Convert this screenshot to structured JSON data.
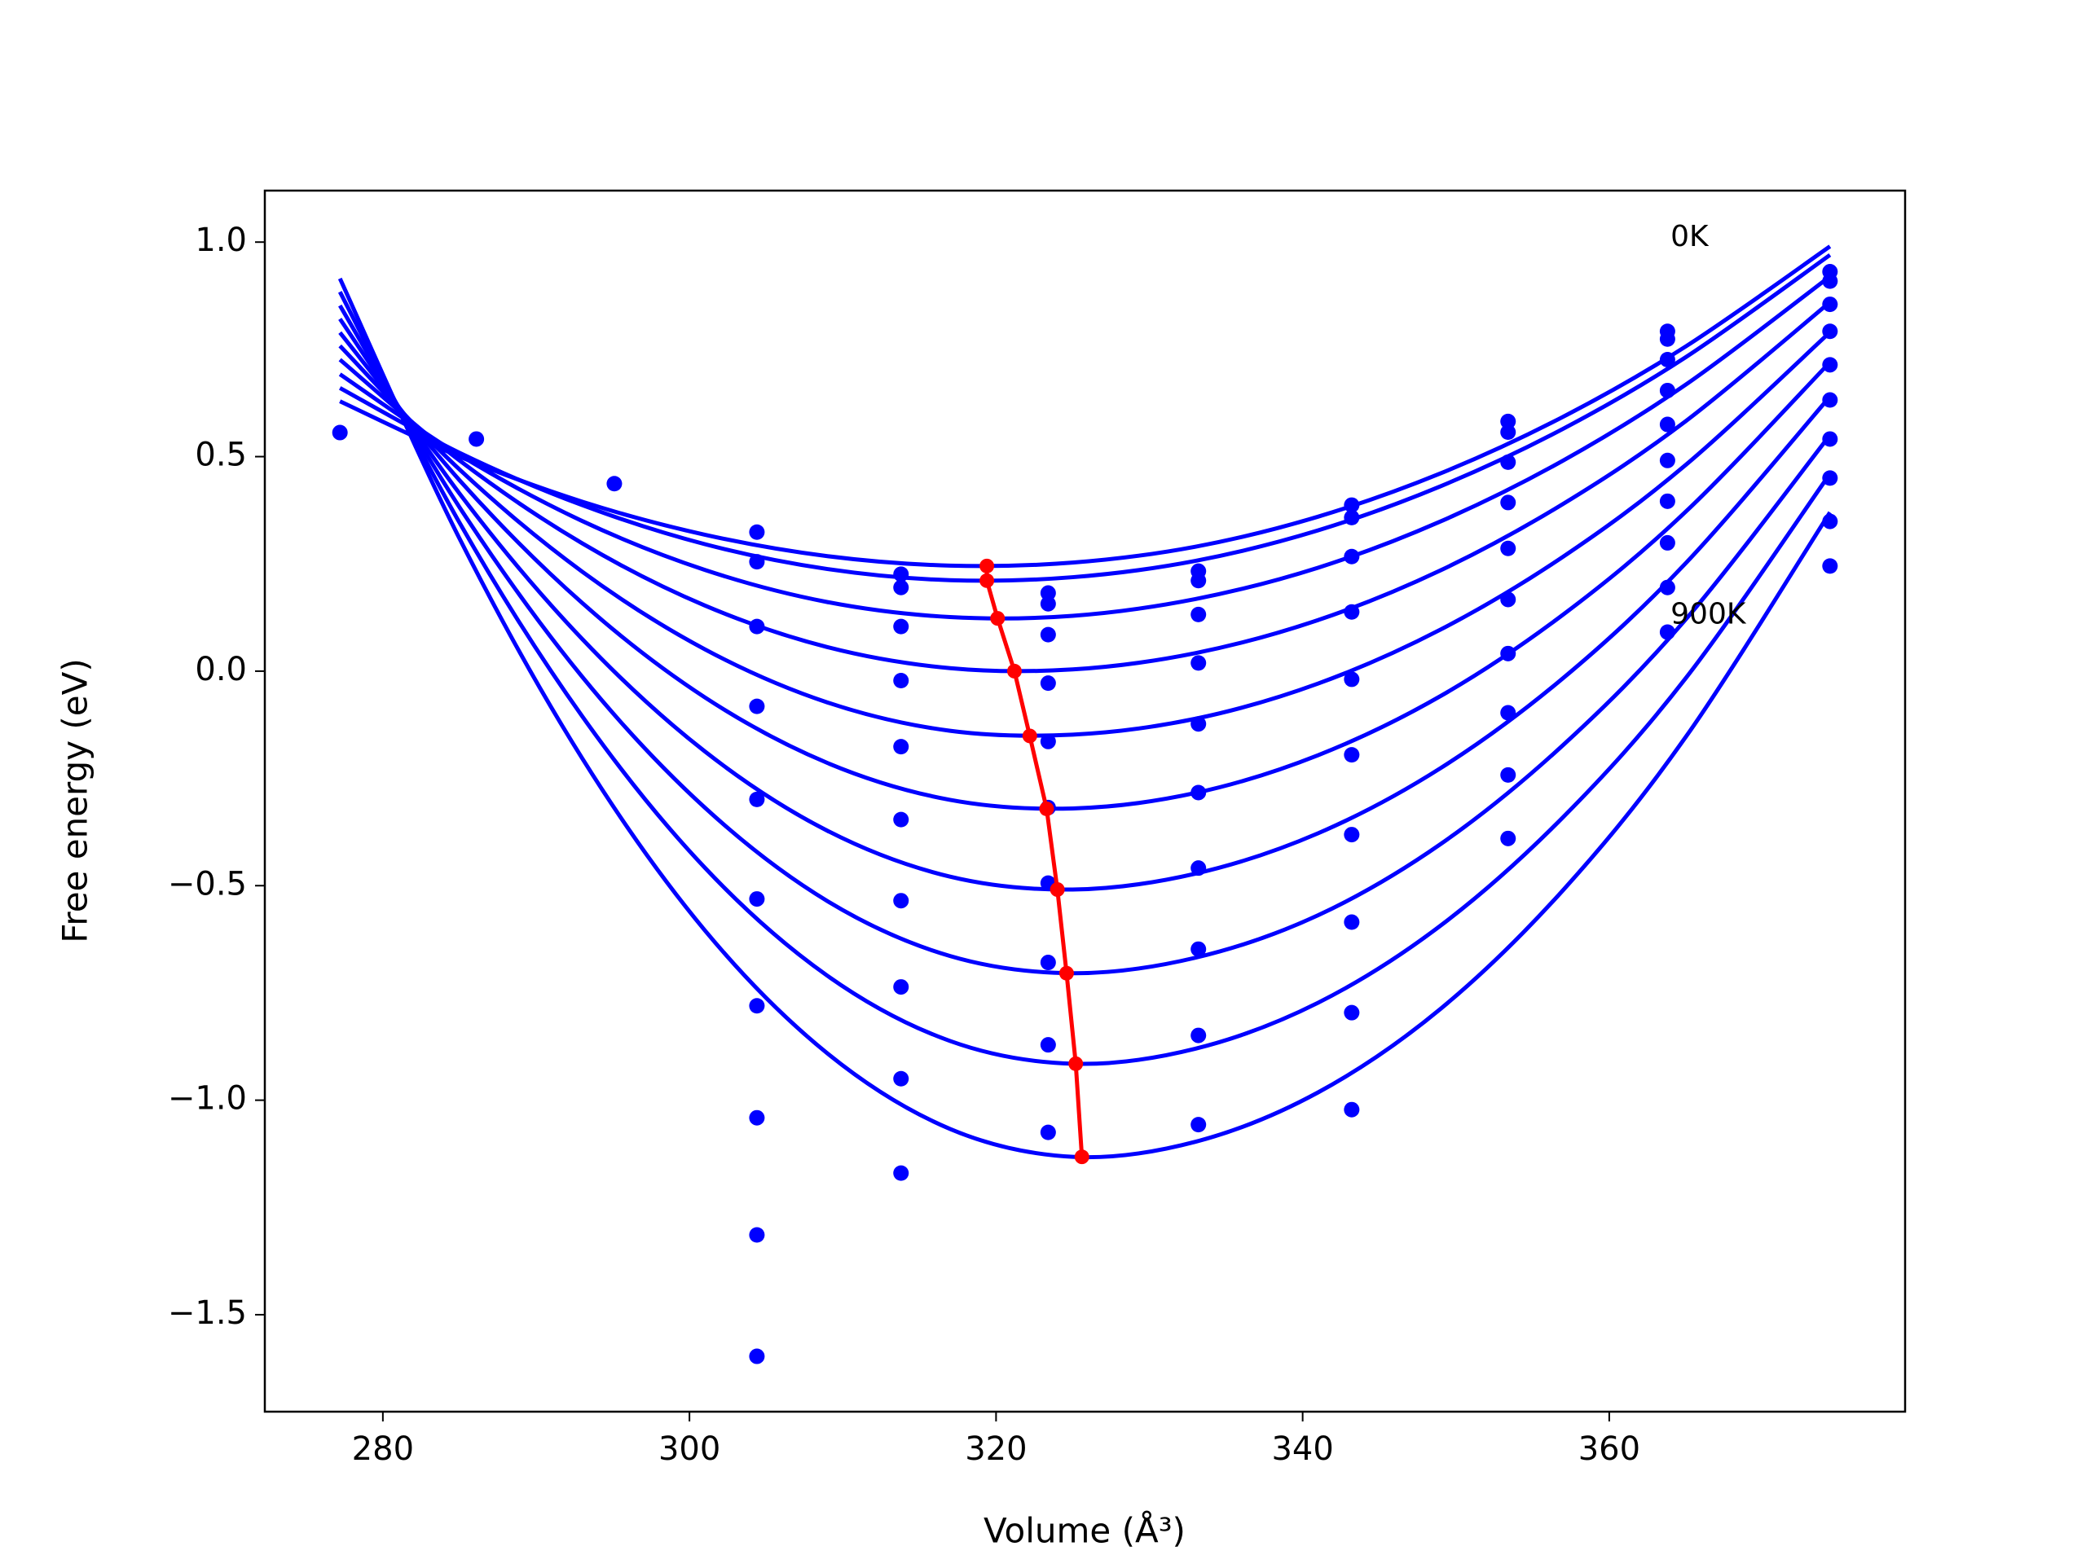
{
  "chart_data": {
    "type": "line",
    "xlabel": "Volume (Å³)",
    "ylabel": "Free energy (eV)",
    "xlim": [
      272.3,
      379.3
    ],
    "ylim": [
      -1.726,
      1.12
    ],
    "xticks": [
      280,
      300,
      320,
      340,
      360
    ],
    "yticks": [
      {
        "value": -1.5,
        "label": "−1.5"
      },
      {
        "value": -1.0,
        "label": "−1.0"
      },
      {
        "value": -0.5,
        "label": "−0.5"
      },
      {
        "value": 0.0,
        "label": "0.0"
      },
      0.5,
      {
        "value": 1.0,
        "label": "1.0"
      }
    ],
    "x": [
      277.2,
      285,
      293,
      301,
      309,
      317,
      325,
      333,
      341,
      349,
      357,
      365,
      374.4
    ],
    "series": [
      {
        "type": "line",
        "color": "#0000ff",
        "values": [
          0.629,
          0.5,
          0.395,
          0.318,
          0.268,
          0.246,
          0.253,
          0.29,
          0.36,
          0.461,
          0.593,
          0.757,
          0.99
        ]
      },
      {
        "type": "line",
        "color": "#0000ff",
        "values": [
          0.66,
          0.509,
          0.387,
          0.296,
          0.238,
          0.212,
          0.219,
          0.257,
          0.328,
          0.431,
          0.565,
          0.732,
          0.97
        ]
      },
      {
        "type": "line",
        "color": "#0000ff",
        "values": [
          0.692,
          0.504,
          0.35,
          0.236,
          0.161,
          0.126,
          0.129,
          0.168,
          0.241,
          0.349,
          0.491,
          0.668,
          0.92
        ]
      },
      {
        "type": "line",
        "color": "#0000ff",
        "values": [
          0.726,
          0.491,
          0.298,
          0.153,
          0.056,
          0.007,
          0.004,
          0.042,
          0.119,
          0.235,
          0.39,
          0.583,
          0.86
        ]
      },
      {
        "type": "line",
        "color": "#0000ff",
        "values": [
          0.758,
          0.47,
          0.232,
          0.051,
          -0.073,
          -0.139,
          -0.148,
          -0.111,
          -0.029,
          0.097,
          0.267,
          0.481,
          0.79
        ]
      },
      {
        "type": "line",
        "color": "#0000ff",
        "values": [
          0.789,
          0.445,
          0.159,
          -0.061,
          -0.214,
          -0.3,
          -0.32,
          -0.284,
          -0.196,
          -0.058,
          0.132,
          0.372,
          0.72
        ]
      },
      {
        "type": "line",
        "color": "#0000ff",
        "values": [
          0.821,
          0.414,
          0.075,
          -0.187,
          -0.372,
          -0.479,
          -0.509,
          -0.472,
          -0.378,
          -0.226,
          -0.016,
          0.252,
          0.64
        ]
      },
      {
        "type": "line",
        "color": "#0000ff",
        "values": [
          0.852,
          0.382,
          -0.013,
          -0.318,
          -0.536,
          -0.664,
          -0.704,
          -0.668,
          -0.569,
          -0.403,
          -0.172,
          0.121,
          0.55
        ]
      },
      {
        "type": "line",
        "color": "#0000ff",
        "values": [
          0.884,
          0.346,
          -0.105,
          -0.458,
          -0.71,
          -0.862,
          -0.915,
          -0.88,
          -0.773,
          -0.593,
          -0.34,
          -0.016,
          0.46
        ]
      },
      {
        "type": "line",
        "color": "#0000ff",
        "values": [
          0.915,
          0.309,
          -0.203,
          -0.604,
          -0.891,
          -1.067,
          -1.132,
          -1.097,
          -0.982,
          -0.787,
          -0.51,
          -0.153,
          0.37
        ]
      },
      {
        "type": "scatter",
        "color": "#0000ff",
        "x": [
          277.2,
          286.1,
          295.1,
          304.4,
          304.4,
          304.4,
          304.4,
          304.4,
          304.4,
          304.4,
          304.4,
          304.4,
          304.4,
          313.8,
          313.8,
          313.8,
          313.8,
          313.8,
          313.8,
          313.8,
          313.8,
          313.8,
          313.8,
          323.4,
          323.4,
          323.4,
          323.4,
          323.4,
          323.4,
          323.4,
          323.4,
          323.4,
          323.4,
          333.2,
          333.2,
          333.2,
          333.2,
          333.2,
          333.2,
          333.2,
          333.2,
          333.2,
          333.2,
          343.2,
          343.2,
          343.2,
          343.2,
          343.2,
          343.2,
          343.2,
          343.2,
          343.2,
          343.2,
          353.4,
          353.4,
          353.4,
          353.4,
          353.4,
          353.4,
          353.4,
          353.4,
          353.4,
          353.4,
          363.8,
          363.8,
          363.8,
          363.8,
          363.8,
          363.8,
          363.8,
          363.8,
          363.8,
          363.8,
          374.4,
          374.4,
          374.4,
          374.4,
          374.4,
          374.4,
          374.4,
          374.4,
          374.4,
          374.4
        ],
        "values": [
          0.556,
          0.541,
          0.437,
          0.324,
          0.255,
          0.104,
          -0.082,
          -0.299,
          -0.531,
          -0.78,
          -1.041,
          -1.314,
          -1.597,
          0.226,
          0.195,
          0.104,
          -0.022,
          -0.176,
          -0.346,
          -0.535,
          -0.736,
          -0.95,
          -1.17,
          0.182,
          0.157,
          0.085,
          -0.028,
          -0.164,
          -0.318,
          -0.494,
          -0.679,
          -0.871,
          -1.075,
          0.233,
          0.211,
          0.132,
          0.019,
          -0.123,
          -0.283,
          -0.459,
          -0.648,
          -0.849,
          -1.057,
          0.387,
          0.358,
          0.267,
          0.138,
          -0.019,
          -0.195,
          -0.381,
          -0.585,
          -0.796,
          -1.022,
          0.582,
          0.557,
          0.487,
          0.393,
          0.286,
          0.167,
          0.041,
          -0.097,
          -0.242,
          -0.39,
          0.792,
          0.774,
          0.726,
          0.654,
          0.575,
          0.491,
          0.396,
          0.299,
          0.195,
          0.091,
          0.931,
          0.909,
          0.855,
          0.792,
          0.714,
          0.632,
          0.541,
          0.45,
          0.349,
          0.245
        ]
      },
      {
        "type": "line",
        "color": "#ff0000",
        "markers": true,
        "smooth": false,
        "x": [
          319.4,
          319.4,
          320.1,
          321.2,
          322.2,
          323.3,
          324.0,
          324.6,
          325.2,
          325.6
        ],
        "values": [
          0.245,
          0.211,
          0.123,
          0.0,
          -0.151,
          -0.321,
          -0.509,
          -0.704,
          -0.915,
          -1.132
        ]
      }
    ],
    "annotations": [
      {
        "text": "0K",
        "x": 364.0,
        "y": 1.01
      },
      {
        "text": "900K",
        "x": 364.0,
        "y": 0.13
      }
    ]
  }
}
